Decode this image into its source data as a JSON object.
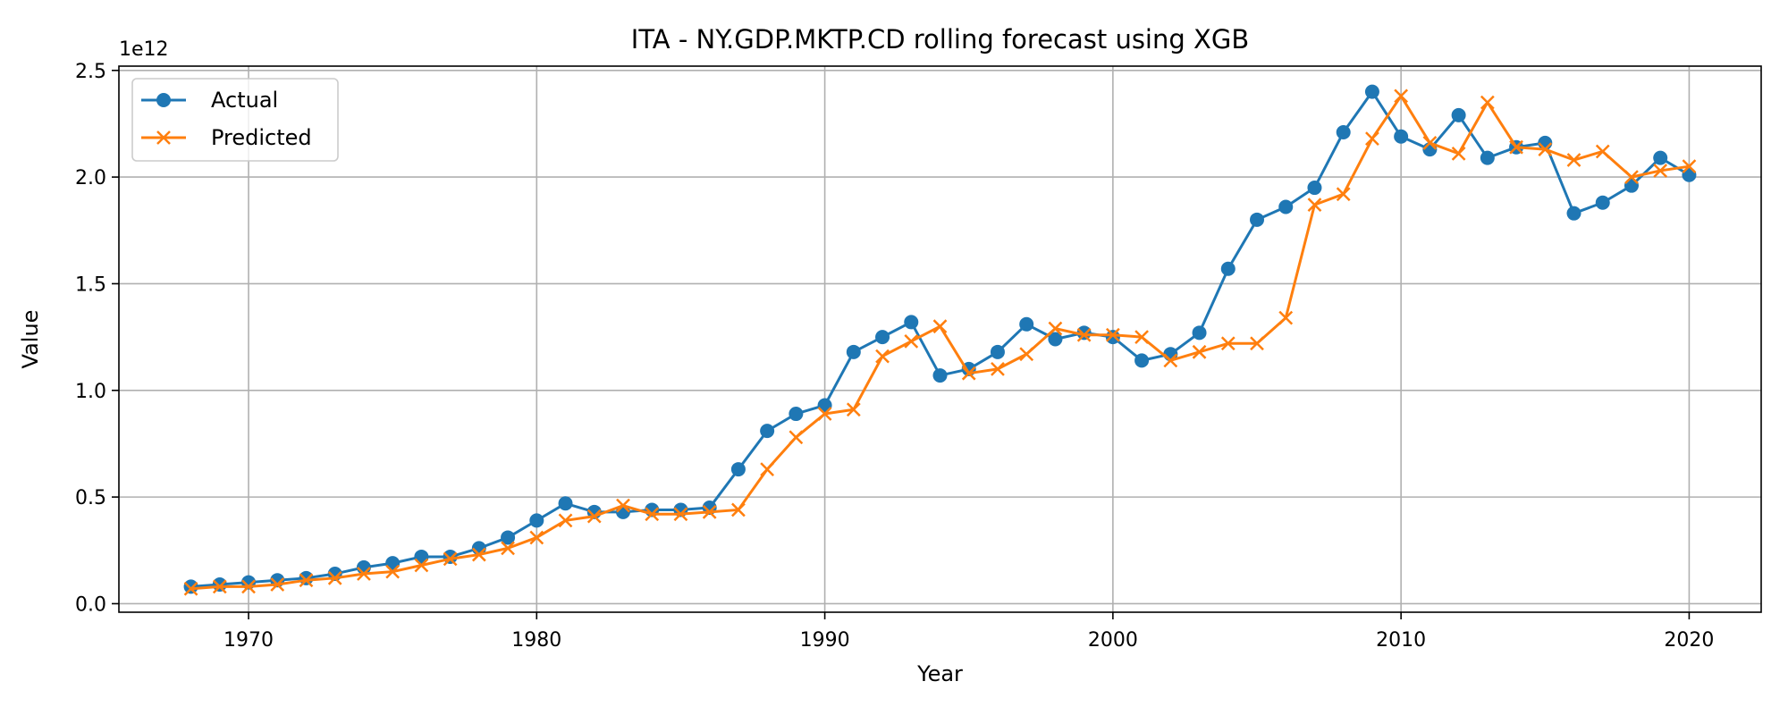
{
  "chart_data": {
    "type": "line",
    "title": "ITA - NY.GDP.MKTP.CD rolling forecast using XGB",
    "xlabel": "Year",
    "ylabel": "Value",
    "y_offset_label": "1e12",
    "xlim": [
      1965.5,
      2022.5
    ],
    "ylim": [
      -0.04,
      2.52
    ],
    "x_ticks": [
      1970,
      1980,
      1990,
      2000,
      2010,
      2020
    ],
    "y_ticks": [
      0.0,
      0.5,
      1.0,
      1.5,
      2.0,
      2.5
    ],
    "y_tick_labels": [
      "0.0",
      "0.5",
      "1.0",
      "1.5",
      "2.0",
      "2.5"
    ],
    "grid": true,
    "legend_position": "top-left",
    "x": [
      1968,
      1969,
      1970,
      1971,
      1972,
      1973,
      1974,
      1975,
      1976,
      1977,
      1978,
      1979,
      1980,
      1981,
      1982,
      1983,
      1984,
      1985,
      1986,
      1987,
      1988,
      1989,
      1990,
      1991,
      1992,
      1993,
      1994,
      1995,
      1996,
      1997,
      1998,
      1999,
      2000,
      2001,
      2002,
      2003,
      2004,
      2005,
      2006,
      2007,
      2008,
      2009,
      2010,
      2011,
      2012,
      2013,
      2014,
      2015,
      2016,
      2017,
      2018,
      2019,
      2020
    ],
    "series": [
      {
        "name": "Actual",
        "color": "#1f77b4",
        "marker": "circle",
        "values": [
          0.08,
          0.09,
          0.1,
          0.11,
          0.12,
          0.14,
          0.17,
          0.19,
          0.22,
          0.22,
          0.26,
          0.31,
          0.39,
          0.47,
          0.43,
          0.43,
          0.44,
          0.44,
          0.45,
          0.63,
          0.81,
          0.89,
          0.93,
          1.18,
          1.25,
          1.32,
          1.07,
          1.1,
          1.18,
          1.31,
          1.24,
          1.27,
          1.25,
          1.14,
          1.17,
          1.27,
          1.57,
          1.8,
          1.86,
          1.95,
          2.21,
          2.4,
          2.19,
          2.13,
          2.29,
          2.09,
          2.14,
          2.16,
          1.83,
          1.88,
          1.96,
          2.09,
          2.01
        ]
      },
      {
        "name": "Predicted",
        "color": "#ff7f0e",
        "marker": "x",
        "values": [
          0.07,
          0.08,
          0.08,
          0.09,
          0.11,
          0.12,
          0.14,
          0.15,
          0.18,
          0.21,
          0.23,
          0.26,
          0.31,
          0.39,
          0.41,
          0.46,
          0.42,
          0.42,
          0.43,
          0.44,
          0.63,
          0.78,
          0.89,
          0.91,
          1.16,
          1.23,
          1.3,
          1.08,
          1.1,
          1.17,
          1.29,
          1.26,
          1.26,
          1.25,
          1.14,
          1.18,
          1.22,
          1.22,
          1.34,
          1.87,
          1.92,
          2.18,
          2.38,
          2.16,
          2.11,
          2.35,
          2.14,
          2.13,
          2.08,
          2.12,
          2.0,
          2.03,
          2.05
        ]
      }
    ]
  }
}
